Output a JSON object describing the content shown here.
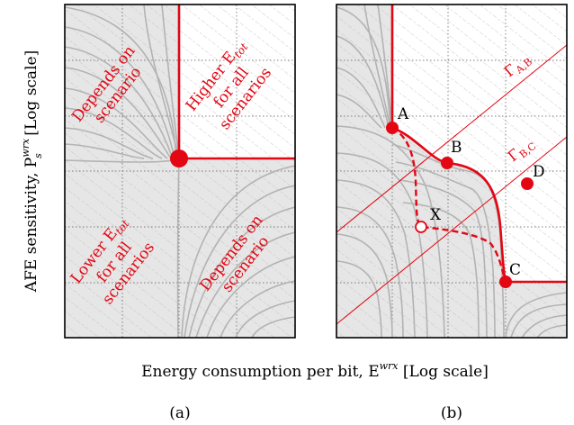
{
  "figure": {
    "y_axis_label": "AFE sensitivity, P",
    "y_axis_sub": "s",
    "y_axis_sup": "wrx",
    "y_axis_suffix": " [Log scale]",
    "x_axis_label": "Energy consumption per bit, E",
    "x_axis_sup": "wrx",
    "x_axis_suffix": " [Log scale]",
    "panels": [
      {
        "caption": "(a)",
        "regions": [
          {
            "line1": "Depends on",
            "line2": "scenario"
          },
          {
            "line1": "Higher E",
            "line1_sub": "tot",
            "line2": "for all",
            "line3": "scenarios"
          },
          {
            "line1": "Lower E",
            "line1_sub": "tot",
            "line2": "for all",
            "line3": "scenarios"
          },
          {
            "line1": "Depends on",
            "line2": "scenario"
          }
        ]
      },
      {
        "caption": "(b)",
        "points": [
          "A",
          "B",
          "C",
          "D",
          "X"
        ],
        "lines": [
          {
            "label": "Γ",
            "sub": "A,B"
          },
          {
            "label": "Γ",
            "sub": "B,C"
          }
        ]
      }
    ],
    "colors": {
      "accent": "#e30613",
      "region": "#e6e6e6",
      "curve": "#b3b3b3"
    }
  }
}
